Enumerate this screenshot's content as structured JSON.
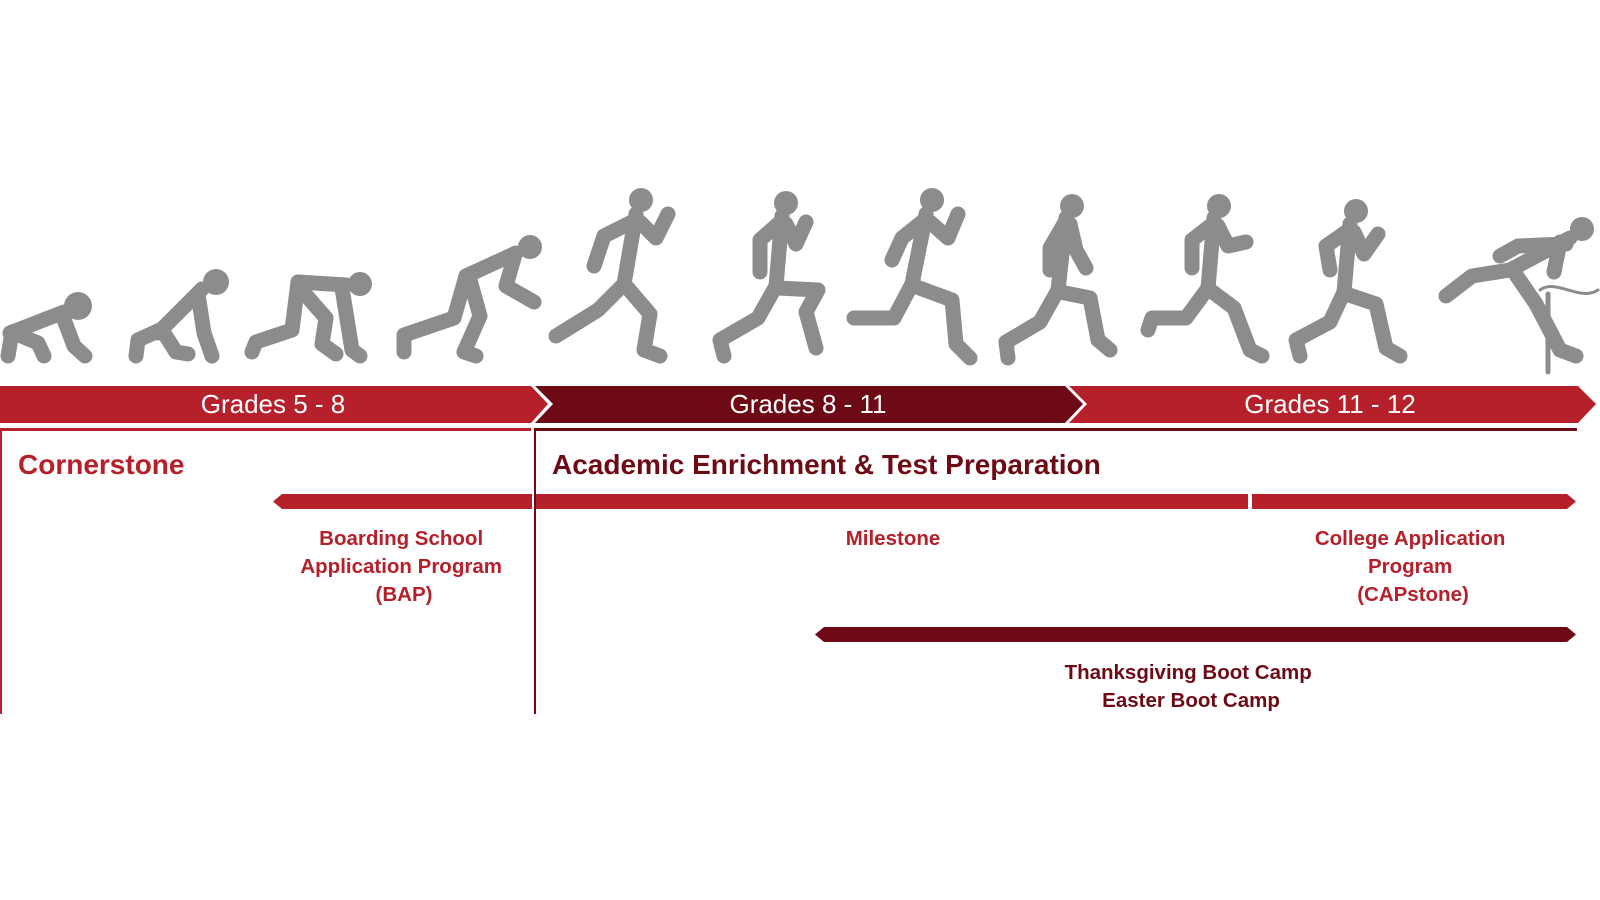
{
  "colors": {
    "red": "#b5202b",
    "maroon": "#6d0a15",
    "figure_gray": "#8c8c8e",
    "white": "#ffffff"
  },
  "icons": {
    "figures": "runner-silhouette-icon"
  },
  "grades": [
    {
      "label": "Grades 5 - 8",
      "color": "red"
    },
    {
      "label": "Grades 8 - 11",
      "color": "maroon"
    },
    {
      "label": "Grades 11 - 12",
      "color": "red"
    }
  ],
  "sections": {
    "cornerstone": "Cornerstone",
    "academic": "Academic Enrichment & Test Preparation"
  },
  "programs": {
    "bap": [
      "Boarding School",
      "Application Program",
      "(BAP)"
    ],
    "milestone": [
      "Milestone"
    ],
    "capstone": [
      "College Application",
      "Program",
      "(CAPstone)"
    ],
    "bootcamps": [
      "Thanksgiving Boot Camp",
      "Easter Boot Camp"
    ]
  }
}
